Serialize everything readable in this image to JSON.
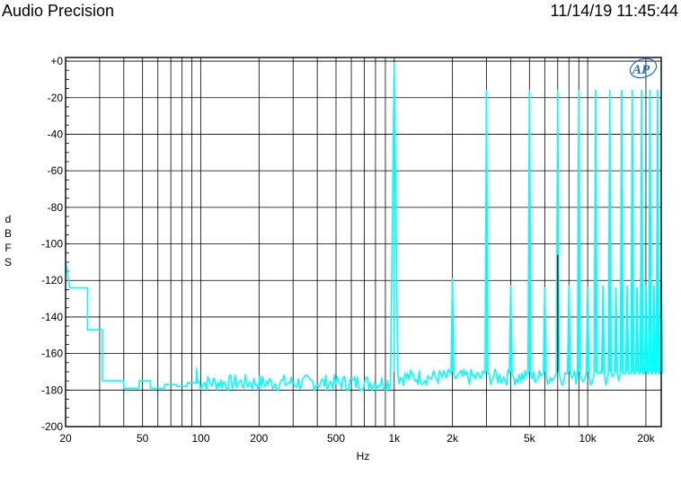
{
  "header": {
    "app_title": "Audio Precision",
    "timestamp": "11/14/19 11:45:44"
  },
  "chart_data": {
    "type": "line",
    "title": "",
    "xlabel": "Hz",
    "ylabel": "dBFS",
    "x_scale": "log",
    "xlim": [
      20,
      24000
    ],
    "ylim": [
      -200,
      2
    ],
    "grid": true,
    "x_ticks": [
      {
        "value": 20,
        "label": "20"
      },
      {
        "value": 50,
        "label": "50"
      },
      {
        "value": 100,
        "label": "100"
      },
      {
        "value": 200,
        "label": "200"
      },
      {
        "value": 500,
        "label": "500"
      },
      {
        "value": 1000,
        "label": "1k"
      },
      {
        "value": 2000,
        "label": "2k"
      },
      {
        "value": 5000,
        "label": "5k"
      },
      {
        "value": 10000,
        "label": "10k"
      },
      {
        "value": 20000,
        "label": "20k"
      }
    ],
    "y_ticks": [
      {
        "value": 0,
        "label": "+0"
      },
      {
        "value": -20,
        "label": "-20"
      },
      {
        "value": -40,
        "label": "-40"
      },
      {
        "value": -60,
        "label": "-60"
      },
      {
        "value": -80,
        "label": "-80"
      },
      {
        "value": -100,
        "label": "-100"
      },
      {
        "value": -120,
        "label": "-120"
      },
      {
        "value": -140,
        "label": "-140"
      },
      {
        "value": -160,
        "label": "-160"
      },
      {
        "value": -180,
        "label": "-180"
      },
      {
        "value": -200,
        "label": "-200"
      }
    ],
    "series": [
      {
        "color": "#00ffff",
        "noise_floor_dbfs": -173,
        "steps": [
          {
            "f": 20,
            "db": -110
          },
          {
            "f": 21,
            "db": -124
          },
          {
            "f": 26,
            "db": -124
          },
          {
            "f": 26,
            "db": -147
          },
          {
            "f": 31,
            "db": -147
          },
          {
            "f": 31,
            "db": -175
          },
          {
            "f": 40,
            "db": -175
          },
          {
            "f": 40,
            "db": -179
          },
          {
            "f": 48,
            "db": -179
          },
          {
            "f": 48,
            "db": -175
          },
          {
            "f": 55,
            "db": -175
          },
          {
            "f": 55,
            "db": -179
          },
          {
            "f": 65,
            "db": -179
          },
          {
            "f": 65,
            "db": -177
          },
          {
            "f": 75,
            "db": -177
          },
          {
            "f": 75,
            "db": -178
          },
          {
            "f": 85,
            "db": -178
          },
          {
            "f": 85,
            "db": -176
          },
          {
            "f": 95,
            "db": -176
          },
          {
            "f": 95,
            "db": -168
          }
        ],
        "peaks": [
          {
            "f": 1000,
            "db": -1
          },
          {
            "f": 2000,
            "db": -119
          },
          {
            "f": 3000,
            "db": -16
          },
          {
            "f": 4000,
            "db": -123
          },
          {
            "f": 5000,
            "db": -16
          },
          {
            "f": 6000,
            "db": -124
          },
          {
            "f": 7000,
            "db": -16
          },
          {
            "f": 8000,
            "db": -123
          },
          {
            "f": 9000,
            "db": -16
          },
          {
            "f": 10000,
            "db": -124
          },
          {
            "f": 11000,
            "db": -16
          },
          {
            "f": 12000,
            "db": -123
          },
          {
            "f": 13000,
            "db": -16
          },
          {
            "f": 14000,
            "db": -124
          },
          {
            "f": 15000,
            "db": -16
          },
          {
            "f": 16000,
            "db": -123
          },
          {
            "f": 17000,
            "db": -16
          },
          {
            "f": 18000,
            "db": -124
          },
          {
            "f": 19000,
            "db": -16
          },
          {
            "f": 20000,
            "db": -123
          },
          {
            "f": 21000,
            "db": -16
          },
          {
            "f": 22000,
            "db": -123
          },
          {
            "f": 23000,
            "db": -16
          },
          {
            "f": 24000,
            "db": -120
          }
        ]
      }
    ],
    "overlay_lines": [
      {
        "f": 7000,
        "db": -106,
        "color": "#000000"
      }
    ]
  }
}
